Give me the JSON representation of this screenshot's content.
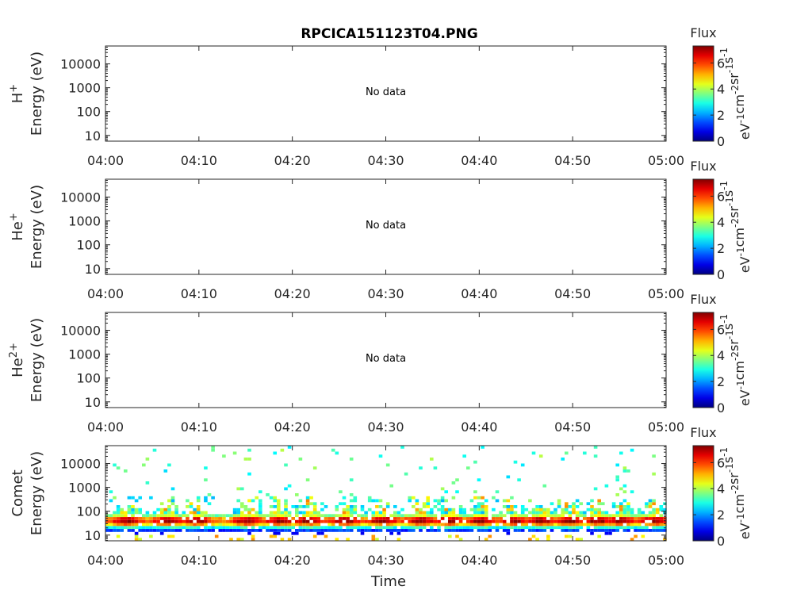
{
  "chart_data": {
    "type": "heatmap",
    "title": "RPCICA151123T04.PNG",
    "xlabel": "Time",
    "x_ticks": [
      "04:00",
      "04:10",
      "04:20",
      "04:30",
      "04:40",
      "04:50",
      "05:00"
    ],
    "x_range": [
      "04:00",
      "05:00"
    ],
    "y_scale": "log",
    "y_ticks": [
      "10",
      "100",
      "1000",
      "10000"
    ],
    "colorbar": {
      "title": "Flux",
      "unit_label": "eV-1cm-2sr-1s-1",
      "ticks": [
        "0",
        "2",
        "4",
        "6"
      ],
      "range": [
        0,
        7.3
      ],
      "colormap": "jet"
    },
    "panels": [
      {
        "species": "H+",
        "ylabel": "Energy (eV)",
        "status": "No data"
      },
      {
        "species": "He+",
        "ylabel": "Energy (eV)",
        "status": "No data"
      },
      {
        "species": "He2+",
        "ylabel": "Energy (eV)",
        "status": "No data"
      },
      {
        "species": "Comet",
        "ylabel": "Energy (eV)",
        "status": "",
        "flux_band": {
          "core_energy_range_eV": [
            20,
            60
          ],
          "peak_flux": 7,
          "burst_times_min": [
            2,
            6.5,
            9.5,
            15,
            18.5,
            21.5,
            25.5,
            29.5,
            33.5,
            36.5,
            40,
            43.5,
            46.5,
            49.5,
            52.5,
            55,
            58.5
          ],
          "sparse_high_energy_eV": [
            500,
            10000
          ]
        }
      }
    ]
  }
}
